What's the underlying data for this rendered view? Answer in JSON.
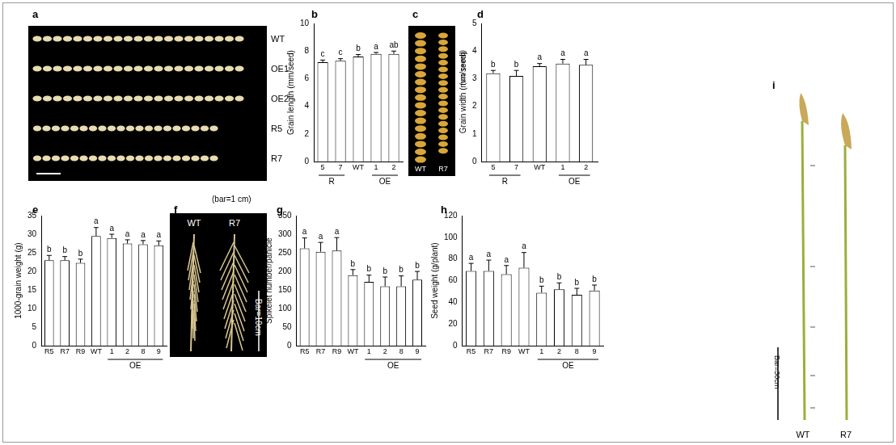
{
  "chart_data": [
    {
      "panel": "b",
      "type": "bar",
      "y_label": "Grain length (mm/seed)",
      "categories": [
        "5",
        "7",
        "WT",
        "1",
        "2"
      ],
      "values": [
        7.2,
        7.3,
        7.6,
        7.8,
        7.8
      ],
      "errors": [
        0.15,
        0.15,
        0.15,
        0.1,
        0.2
      ],
      "significance_letters": [
        "c",
        "c",
        "b",
        "a",
        "ab"
      ],
      "groups": [
        {
          "label": "R",
          "categories": [
            "5",
            "7"
          ]
        },
        {
          "label": "OE",
          "categories": [
            "1",
            "2"
          ]
        }
      ],
      "color": "#ffffff",
      "ylim": [
        0,
        10
      ],
      "yticks": [
        0,
        2,
        4,
        6,
        8,
        10
      ],
      "grid": false
    },
    {
      "panel": "d",
      "type": "bar",
      "y_label": "Grain width (mm/seed)",
      "categories": [
        "5",
        "7",
        "WT",
        "1",
        "2"
      ],
      "values": [
        3.2,
        3.1,
        3.45,
        3.55,
        3.5
      ],
      "errors": [
        0.1,
        0.2,
        0.1,
        0.15,
        0.2
      ],
      "significance_letters": [
        "b",
        "b",
        "a",
        "a",
        "a"
      ],
      "groups": [
        {
          "label": "R",
          "categories": [
            "5",
            "7"
          ]
        },
        {
          "label": "OE",
          "categories": [
            "1",
            "2"
          ]
        }
      ],
      "color": "#ffffff",
      "ylim": [
        0,
        5
      ],
      "yticks": [
        0,
        1,
        2,
        3,
        4,
        5
      ],
      "grid": false
    },
    {
      "panel": "e",
      "type": "bar",
      "y_label": "1000-grain weight (g)",
      "categories": [
        "R5",
        "R7",
        "R9",
        "WT",
        "1",
        "2",
        "8",
        "9"
      ],
      "values": [
        23,
        23,
        22.3,
        29.5,
        29,
        27.5,
        27.3,
        27
      ],
      "errors": [
        1.3,
        1,
        1,
        2.3,
        1,
        1,
        1,
        1.2
      ],
      "significance_letters": [
        "b",
        "b",
        "b",
        "a",
        "a",
        "a",
        "a",
        "a"
      ],
      "groups": [
        {
          "label": "OE",
          "categories": [
            "1",
            "2",
            "8",
            "9"
          ]
        }
      ],
      "color": "#ffffff",
      "ylim": [
        0,
        35
      ],
      "yticks": [
        0,
        5,
        10,
        15,
        20,
        25,
        30,
        35
      ],
      "grid": false
    },
    {
      "panel": "g",
      "type": "bar",
      "y_label": "Spikelet number/panicle",
      "categories": [
        "R5",
        "R7",
        "R9",
        "WT",
        "1",
        "2",
        "8",
        "9"
      ],
      "values": [
        262,
        253,
        256,
        190,
        172,
        160,
        160,
        178
      ],
      "errors": [
        28,
        25,
        35,
        15,
        18,
        25,
        28,
        22
      ],
      "significance_letters": [
        "a",
        "a",
        "a",
        "b",
        "b",
        "b",
        "b",
        "b"
      ],
      "groups": [
        {
          "label": "OE",
          "categories": [
            "1",
            "2",
            "8",
            "9"
          ]
        }
      ],
      "color": "#ffffff",
      "ylim": [
        0,
        350
      ],
      "yticks": [
        0,
        50,
        100,
        150,
        200,
        250,
        300,
        350
      ],
      "grid": false
    },
    {
      "panel": "h",
      "type": "bar",
      "y_label": "Seed weight (g/plant)",
      "categories": [
        "R5",
        "R7",
        "R9",
        "WT",
        "1",
        "2",
        "8",
        "9"
      ],
      "values": [
        69,
        69,
        66,
        72,
        49,
        52,
        47,
        51
      ],
      "errors": [
        7,
        10,
        8,
        14,
        6,
        6,
        6,
        5
      ],
      "significance_letters": [
        "a",
        "a",
        "a",
        "a",
        "b",
        "b",
        "b",
        "b"
      ],
      "groups": [
        {
          "label": "OE",
          "categories": [
            "1",
            "2",
            "8",
            "9"
          ]
        }
      ],
      "color": "#ffffff",
      "ylim": [
        0,
        120
      ],
      "yticks": [
        0,
        20,
        40,
        60,
        80,
        100,
        120
      ],
      "grid": false
    }
  ],
  "photos": [
    {
      "panel": "a",
      "labels": [
        "WT",
        "OE1",
        "OE2",
        "R5",
        "R7"
      ],
      "scale_bar": "(bar=1 cm)"
    },
    {
      "panel": "c",
      "labels": [
        "WT",
        "R7"
      ],
      "scale_bar": "(bar=1 cm)"
    },
    {
      "panel": "f",
      "labels": [
        "WT",
        "R7"
      ],
      "scale_bar": "Bar=10cm"
    },
    {
      "panel": "i",
      "labels": [
        "WT",
        "R7"
      ],
      "scale_bar": "Bar=30cm"
    }
  ]
}
